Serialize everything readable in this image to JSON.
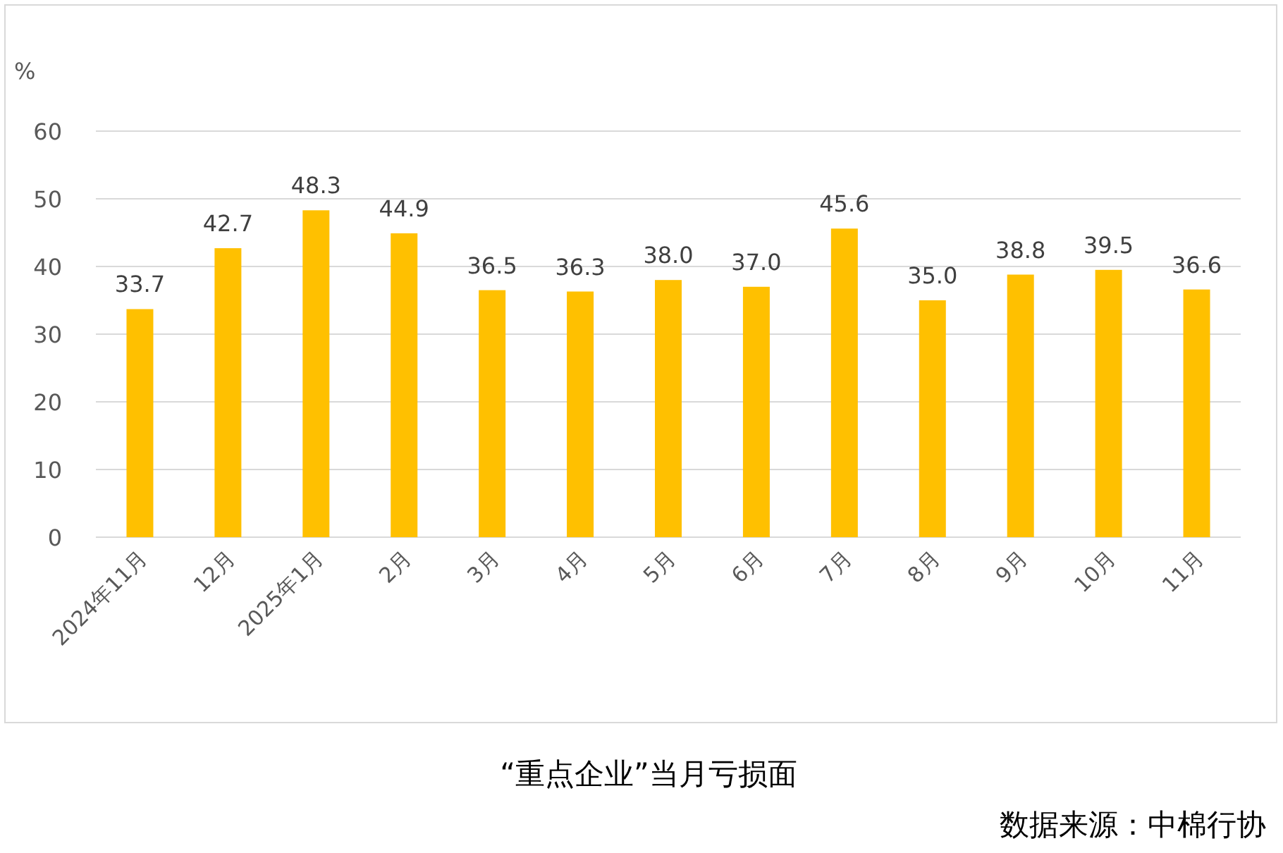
{
  "chart_data": {
    "type": "bar",
    "title": "“重点企业”当月亏损面",
    "ylabel": "%",
    "categories": [
      "2024年11月",
      "12月",
      "2025年1月",
      "2月",
      "3月",
      "4月",
      "5月",
      "6月",
      "7月",
      "8月",
      "9月",
      "10月",
      "11月"
    ],
    "values": [
      33.7,
      42.7,
      48.3,
      44.9,
      36.5,
      36.3,
      38.0,
      37.0,
      45.6,
      35.0,
      38.8,
      39.5,
      36.6
    ],
    "value_labels": [
      "33.7",
      "42.7",
      "48.3",
      "44.9",
      "36.5",
      "36.3",
      "38.0",
      "37.0",
      "45.6",
      "35.0",
      "38.8",
      "39.5",
      "36.6"
    ],
    "color": "#ffc000",
    "ylim": [
      0,
      60
    ],
    "yticks": [
      0,
      10,
      20,
      30,
      40,
      50,
      60
    ],
    "grid": "y",
    "annotations": [
      "数据来源：中棉行协"
    ]
  }
}
